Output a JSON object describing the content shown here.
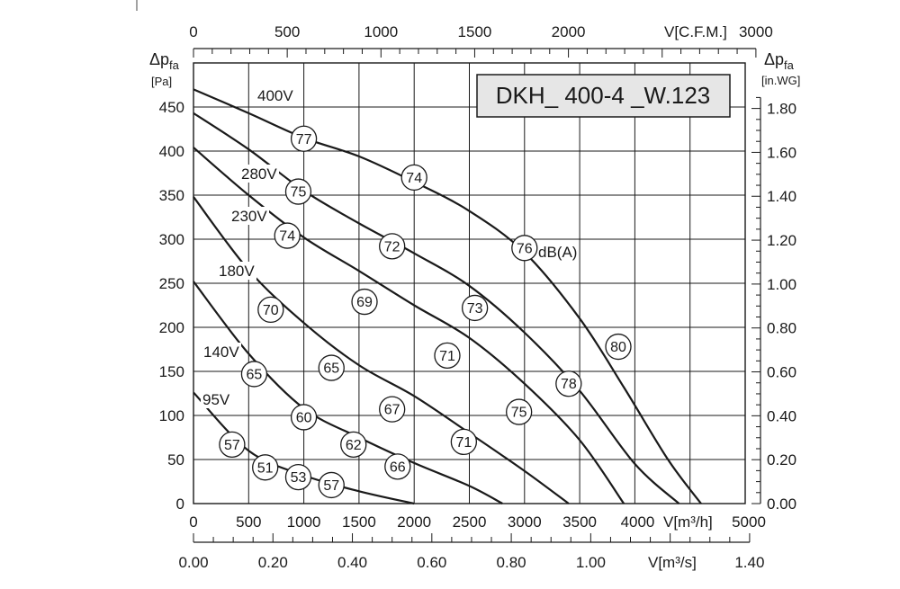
{
  "chart_data": {
    "type": "line",
    "title": "DKH_ 400-4 _W.123",
    "ylabel_left": {
      "symbol": "Δp",
      "subscript": "fa",
      "unit": "[Pa]"
    },
    "ylabel_right": {
      "symbol": "Δp",
      "subscript": "fa",
      "unit": "[in.WG]"
    },
    "xlabel_m3h": "V[m³/h]",
    "xlabel_cfm": "V[C.F.M.]",
    "xlabel_m3s": "V[m³/s]",
    "xlim": [
      0,
      5000
    ],
    "ylim": [
      0,
      500
    ],
    "x_ticks_m3h": [
      "0",
      "500",
      "1000",
      "1500",
      "2000",
      "2500",
      "3000",
      "3500",
      "4000",
      "5000"
    ],
    "x_ticks_cfm": [
      "0",
      "500",
      "1000",
      "1500",
      "2000",
      "3000"
    ],
    "x_ticks_m3s": [
      "0.00",
      "0.20",
      "0.40",
      "0.60",
      "0.80",
      "1.00",
      "1.40"
    ],
    "y_ticks_pa": [
      "0",
      "50",
      "100",
      "150",
      "200",
      "250",
      "300",
      "350",
      "400",
      "450"
    ],
    "y_ticks_inwg": [
      "0.00",
      "0.20",
      "0.40",
      "0.60",
      "0.80",
      "1.00",
      "1.20",
      "1.40",
      "1.60",
      "1.80"
    ],
    "sound_unit_label": "dB(A)",
    "series": [
      {
        "name": "400V",
        "points": [
          [
            0,
            470
          ],
          [
            500,
            443
          ],
          [
            1000,
            415
          ],
          [
            1500,
            394
          ],
          [
            2000,
            365
          ],
          [
            2500,
            332
          ],
          [
            3000,
            285
          ],
          [
            3500,
            210
          ],
          [
            3900,
            132
          ],
          [
            4300,
            50
          ],
          [
            4600,
            0
          ]
        ]
      },
      {
        "name": "280V",
        "points": [
          [
            0,
            443
          ],
          [
            500,
            402
          ],
          [
            1000,
            355
          ],
          [
            1500,
            318
          ],
          [
            2000,
            284
          ],
          [
            2500,
            247
          ],
          [
            3000,
            194
          ],
          [
            3500,
            128
          ],
          [
            4000,
            45
          ],
          [
            4400,
            0
          ]
        ]
      },
      {
        "name": "230V",
        "points": [
          [
            0,
            404
          ],
          [
            500,
            350
          ],
          [
            1000,
            302
          ],
          [
            1500,
            264
          ],
          [
            2000,
            225
          ],
          [
            2500,
            188
          ],
          [
            3000,
            136
          ],
          [
            3500,
            72
          ],
          [
            3900,
            0
          ]
        ]
      },
      {
        "name": "180V",
        "points": [
          [
            0,
            348
          ],
          [
            500,
            265
          ],
          [
            1000,
            205
          ],
          [
            1500,
            157
          ],
          [
            2000,
            122
          ],
          [
            2500,
            80
          ],
          [
            3000,
            37
          ],
          [
            3400,
            0
          ]
        ]
      },
      {
        "name": "140V",
        "points": [
          [
            0,
            252
          ],
          [
            500,
            170
          ],
          [
            1000,
            108
          ],
          [
            1500,
            75
          ],
          [
            2000,
            46
          ],
          [
            2500,
            20
          ],
          [
            2800,
            0
          ]
        ]
      },
      {
        "name": "95V",
        "points": [
          [
            0,
            126
          ],
          [
            500,
            60
          ],
          [
            1000,
            32
          ],
          [
            1500,
            14
          ],
          [
            2000,
            0
          ]
        ]
      }
    ],
    "sound_markers": [
      {
        "x": 1000,
        "y": 414,
        "label": "77"
      },
      {
        "x": 2000,
        "y": 370,
        "label": "74"
      },
      {
        "x": 3000,
        "y": 290,
        "label": "76"
      },
      {
        "x": 3850,
        "y": 178,
        "label": "80"
      },
      {
        "x": 950,
        "y": 354,
        "label": "75"
      },
      {
        "x": 1800,
        "y": 292,
        "label": "72"
      },
      {
        "x": 2550,
        "y": 222,
        "label": "73"
      },
      {
        "x": 3400,
        "y": 136,
        "label": "78"
      },
      {
        "x": 850,
        "y": 304,
        "label": "74"
      },
      {
        "x": 1550,
        "y": 229,
        "label": "69"
      },
      {
        "x": 2300,
        "y": 168,
        "label": "71"
      },
      {
        "x": 2950,
        "y": 104,
        "label": "75"
      },
      {
        "x": 700,
        "y": 220,
        "label": "70"
      },
      {
        "x": 1250,
        "y": 154,
        "label": "65"
      },
      {
        "x": 1800,
        "y": 107,
        "label": "67"
      },
      {
        "x": 2450,
        "y": 70,
        "label": "71"
      },
      {
        "x": 550,
        "y": 147,
        "label": "65"
      },
      {
        "x": 1000,
        "y": 98,
        "label": "60"
      },
      {
        "x": 1450,
        "y": 67,
        "label": "62"
      },
      {
        "x": 1850,
        "y": 42,
        "label": "66"
      },
      {
        "x": 350,
        "y": 67,
        "label": "57"
      },
      {
        "x": 650,
        "y": 41,
        "label": "51"
      },
      {
        "x": 950,
        "y": 30,
        "label": "53"
      },
      {
        "x": 1250,
        "y": 21,
        "label": "57"
      }
    ],
    "voltage_labels": [
      {
        "text": "400V"
      },
      {
        "text": "280V"
      },
      {
        "text": "230V"
      },
      {
        "text": "180V"
      },
      {
        "text": "140V"
      },
      {
        "text": "95V"
      }
    ],
    "grid": true
  }
}
